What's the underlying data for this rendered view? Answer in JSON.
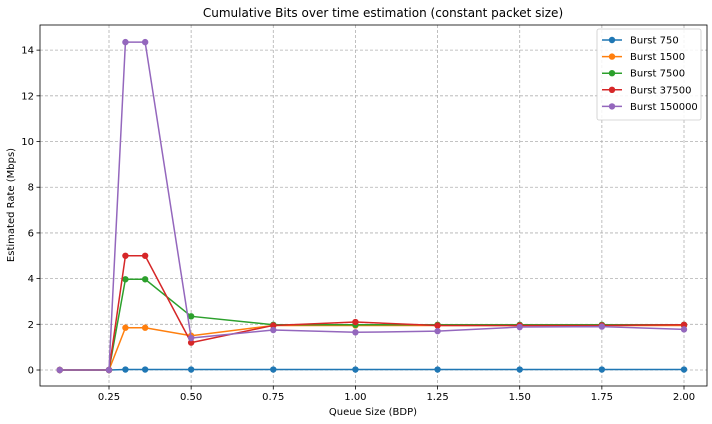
{
  "chart_data": {
    "type": "line",
    "title": "Cumulative Bits over time estimation (constant packet size)",
    "xlabel": "Queue Size (BDP)",
    "ylabel": "Estimated Rate (Mbps)",
    "xlim": [
      0.04,
      2.07
    ],
    "ylim": [
      -0.7,
      15.1
    ],
    "xticks": [
      0.25,
      0.5,
      0.75,
      1.0,
      1.25,
      1.5,
      1.75,
      2.0
    ],
    "xtick_labels": [
      "0.25",
      "0.50",
      "0.75",
      "1.00",
      "1.25",
      "1.50",
      "1.75",
      "2.00"
    ],
    "yticks": [
      0,
      2,
      4,
      6,
      8,
      10,
      12,
      14
    ],
    "ytick_labels": [
      "0",
      "2",
      "4",
      "6",
      "8",
      "10",
      "12",
      "14"
    ],
    "grid": true,
    "legend_position": "top-right",
    "x": [
      0.1,
      0.25,
      0.3,
      0.36,
      0.5,
      0.75,
      1.0,
      1.25,
      1.5,
      1.75,
      2.0
    ],
    "series": [
      {
        "name": "Burst 750",
        "color": "#1f77b4",
        "values": [
          0,
          0,
          0.02,
          0.02,
          0.02,
          0.02,
          0.02,
          0.02,
          0.02,
          0.02,
          0.02
        ]
      },
      {
        "name": "Burst 1500",
        "color": "#ff7f0e",
        "values": [
          0,
          0,
          1.85,
          1.85,
          1.5,
          1.95,
          1.95,
          1.95,
          1.95,
          1.95,
          1.95
        ]
      },
      {
        "name": "Burst 7500",
        "color": "#2ca02c",
        "values": [
          0,
          0,
          3.97,
          3.97,
          2.35,
          1.98,
          1.98,
          1.98,
          1.98,
          1.98,
          1.98
        ]
      },
      {
        "name": "Burst 37500",
        "color": "#d62728",
        "values": [
          0,
          0,
          5.0,
          5.0,
          1.2,
          1.95,
          2.1,
          1.95,
          1.95,
          1.95,
          1.98
        ]
      },
      {
        "name": "Burst 150000",
        "color": "#9467bd",
        "values": [
          0,
          0,
          14.35,
          14.35,
          1.4,
          1.75,
          1.65,
          1.7,
          1.88,
          1.9,
          1.78
        ]
      }
    ]
  }
}
